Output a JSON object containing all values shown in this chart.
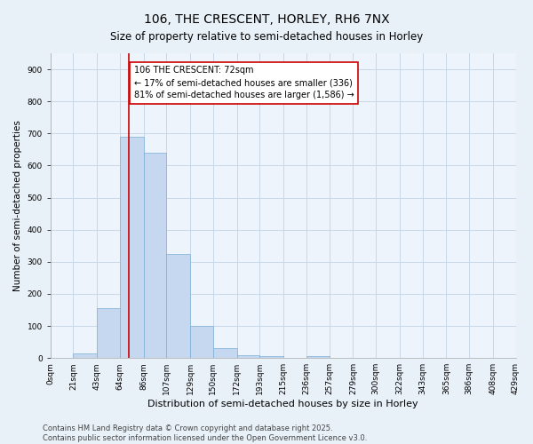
{
  "title": "106, THE CRESCENT, HORLEY, RH6 7NX",
  "subtitle": "Size of property relative to semi-detached houses in Horley",
  "xlabel": "Distribution of semi-detached houses by size in Horley",
  "ylabel": "Number of semi-detached properties",
  "bin_labels": [
    "0sqm",
    "21sqm",
    "43sqm",
    "64sqm",
    "86sqm",
    "107sqm",
    "129sqm",
    "150sqm",
    "172sqm",
    "193sqm",
    "215sqm",
    "236sqm",
    "257sqm",
    "279sqm",
    "300sqm",
    "322sqm",
    "343sqm",
    "365sqm",
    "386sqm",
    "408sqm",
    "429sqm"
  ],
  "bin_edges": [
    0,
    21,
    43,
    64,
    86,
    107,
    129,
    150,
    172,
    193,
    215,
    236,
    257,
    279,
    300,
    322,
    343,
    365,
    386,
    408,
    429
  ],
  "bar_heights": [
    0,
    15,
    155,
    690,
    640,
    325,
    100,
    30,
    10,
    5,
    0,
    7,
    0,
    0,
    0,
    0,
    0,
    0,
    0,
    0
  ],
  "bar_color": "#c5d8f0",
  "bar_edgecolor": "#7aadd4",
  "vline_x": 72,
  "vline_color": "#cc0000",
  "annotation_text": "106 THE CRESCENT: 72sqm\n← 17% of semi-detached houses are smaller (336)\n81% of semi-detached houses are larger (1,586) →",
  "annotation_box_facecolor": "#ffffff",
  "annotation_box_edgecolor": "#cc0000",
  "ylim": [
    0,
    950
  ],
  "yticks": [
    0,
    100,
    200,
    300,
    400,
    500,
    600,
    700,
    800,
    900
  ],
  "grid_color": "#c8d8e8",
  "bg_color": "#e8f0f8",
  "plot_bg_color": "#eef4fb",
  "footer1": "Contains HM Land Registry data © Crown copyright and database right 2025.",
  "footer2": "Contains public sector information licensed under the Open Government Licence v3.0.",
  "title_fontsize": 10,
  "subtitle_fontsize": 8.5,
  "xlabel_fontsize": 8,
  "ylabel_fontsize": 7.5,
  "tick_fontsize": 6.5,
  "annotation_fontsize": 7,
  "footer_fontsize": 6
}
